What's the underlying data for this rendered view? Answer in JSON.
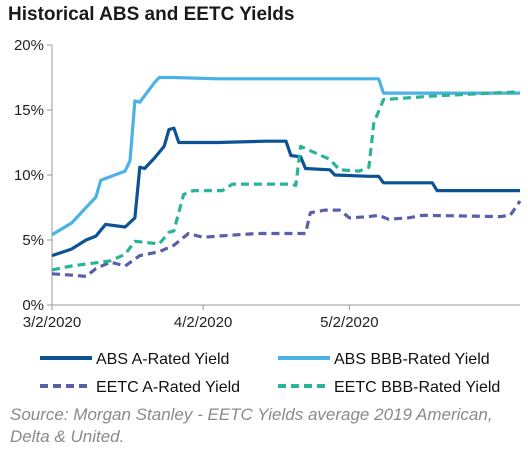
{
  "chart_data": {
    "type": "line",
    "title": "Historical ABS and EETC Yields",
    "xlabel": "",
    "ylabel": "",
    "x_start": "2020-03-02",
    "x_end": "2020-06-06",
    "ylim": [
      0,
      20
    ],
    "y_ticks": [
      0,
      5,
      10,
      15,
      20
    ],
    "y_tick_labels": [
      "0%",
      "5%",
      "10%",
      "15%",
      "20%"
    ],
    "x_ticks": [
      "2020-03-02",
      "2020-04-02",
      "2020-05-02"
    ],
    "x_tick_labels": [
      "3/2/2020",
      "4/2/2020",
      "5/2/2020"
    ],
    "grid": false,
    "legend_position": "bottom",
    "series": [
      {
        "name": "ABS A-Rated Yield",
        "color": "#0b5394",
        "style": "solid",
        "points": [
          [
            "2020-03-02",
            3.8
          ],
          [
            "2020-03-06",
            4.3
          ],
          [
            "2020-03-09",
            5.0
          ],
          [
            "2020-03-11",
            5.3
          ],
          [
            "2020-03-13",
            6.2
          ],
          [
            "2020-03-17",
            6.0
          ],
          [
            "2020-03-19",
            6.7
          ],
          [
            "2020-03-20",
            10.6
          ],
          [
            "2020-03-21",
            10.5
          ],
          [
            "2020-03-23",
            11.3
          ],
          [
            "2020-03-25",
            12.2
          ],
          [
            "2020-03-26",
            13.5
          ],
          [
            "2020-03-27",
            13.6
          ],
          [
            "2020-03-28",
            12.5
          ],
          [
            "2020-04-05",
            12.5
          ],
          [
            "2020-04-15",
            12.6
          ],
          [
            "2020-04-19",
            12.6
          ],
          [
            "2020-04-20",
            11.5
          ],
          [
            "2020-04-22",
            11.4
          ],
          [
            "2020-04-23",
            10.5
          ],
          [
            "2020-04-28",
            10.4
          ],
          [
            "2020-04-29",
            10.0
          ],
          [
            "2020-05-06",
            9.9
          ],
          [
            "2020-05-08",
            9.9
          ],
          [
            "2020-05-09",
            9.4
          ],
          [
            "2020-05-19",
            9.4
          ],
          [
            "2020-05-20",
            8.8
          ],
          [
            "2020-06-06",
            8.8
          ]
        ]
      },
      {
        "name": "ABS BBB-Rated Yield",
        "color": "#4cb2e6",
        "style": "solid",
        "points": [
          [
            "2020-03-02",
            5.4
          ],
          [
            "2020-03-06",
            6.3
          ],
          [
            "2020-03-09",
            7.5
          ],
          [
            "2020-03-11",
            8.3
          ],
          [
            "2020-03-12",
            9.6
          ],
          [
            "2020-03-17",
            10.3
          ],
          [
            "2020-03-18",
            11.1
          ],
          [
            "2020-03-19",
            15.7
          ],
          [
            "2020-03-20",
            15.6
          ],
          [
            "2020-03-23",
            17.1
          ],
          [
            "2020-03-24",
            17.5
          ],
          [
            "2020-03-27",
            17.5
          ],
          [
            "2020-04-05",
            17.4
          ],
          [
            "2020-04-20",
            17.4
          ],
          [
            "2020-05-06",
            17.4
          ],
          [
            "2020-05-08",
            17.4
          ],
          [
            "2020-05-09",
            16.3
          ],
          [
            "2020-06-06",
            16.3
          ]
        ]
      },
      {
        "name": "EETC A-Rated Yield",
        "color": "#5b5ea8",
        "style": "dashed",
        "points": [
          [
            "2020-03-02",
            2.4
          ],
          [
            "2020-03-06",
            2.3
          ],
          [
            "2020-03-09",
            2.2
          ],
          [
            "2020-03-11",
            2.8
          ],
          [
            "2020-03-14",
            3.3
          ],
          [
            "2020-03-17",
            3.0
          ],
          [
            "2020-03-20",
            3.8
          ],
          [
            "2020-03-24",
            4.1
          ],
          [
            "2020-03-27",
            4.6
          ],
          [
            "2020-03-30",
            5.5
          ],
          [
            "2020-04-02",
            5.2
          ],
          [
            "2020-04-05",
            5.3
          ],
          [
            "2020-04-13",
            5.5
          ],
          [
            "2020-04-21",
            5.5
          ],
          [
            "2020-04-23",
            5.5
          ],
          [
            "2020-04-24",
            7.1
          ],
          [
            "2020-04-27",
            7.3
          ],
          [
            "2020-04-30",
            7.3
          ],
          [
            "2020-05-02",
            6.7
          ],
          [
            "2020-05-06",
            6.8
          ],
          [
            "2020-05-08",
            6.9
          ],
          [
            "2020-05-10",
            6.6
          ],
          [
            "2020-05-14",
            6.7
          ],
          [
            "2020-05-17",
            6.9
          ],
          [
            "2020-06-02",
            6.8
          ],
          [
            "2020-06-04",
            6.9
          ],
          [
            "2020-06-06",
            8.0
          ]
        ]
      },
      {
        "name": "EETC BBB-Rated Yield",
        "color": "#2ab497",
        "style": "dashed",
        "points": [
          [
            "2020-03-02",
            2.7
          ],
          [
            "2020-03-06",
            3.0
          ],
          [
            "2020-03-10",
            3.2
          ],
          [
            "2020-03-14",
            3.4
          ],
          [
            "2020-03-17",
            3.9
          ],
          [
            "2020-03-19",
            4.9
          ],
          [
            "2020-03-24",
            4.7
          ],
          [
            "2020-03-26",
            5.6
          ],
          [
            "2020-03-27",
            5.7
          ],
          [
            "2020-03-29",
            8.5
          ],
          [
            "2020-03-31",
            8.8
          ],
          [
            "2020-04-06",
            8.8
          ],
          [
            "2020-04-08",
            9.3
          ],
          [
            "2020-04-20",
            9.3
          ],
          [
            "2020-04-21",
            9.2
          ],
          [
            "2020-04-22",
            12.2
          ],
          [
            "2020-04-28",
            11.2
          ],
          [
            "2020-04-30",
            10.4
          ],
          [
            "2020-05-04",
            10.3
          ],
          [
            "2020-05-06",
            10.6
          ],
          [
            "2020-05-07",
            14.0
          ],
          [
            "2020-05-09",
            15.8
          ],
          [
            "2020-05-20",
            16.1
          ],
          [
            "2020-06-06",
            16.4
          ]
        ]
      }
    ],
    "source": "Source: Morgan Stanley - EETC Yields average 2019 American, Delta & United."
  }
}
